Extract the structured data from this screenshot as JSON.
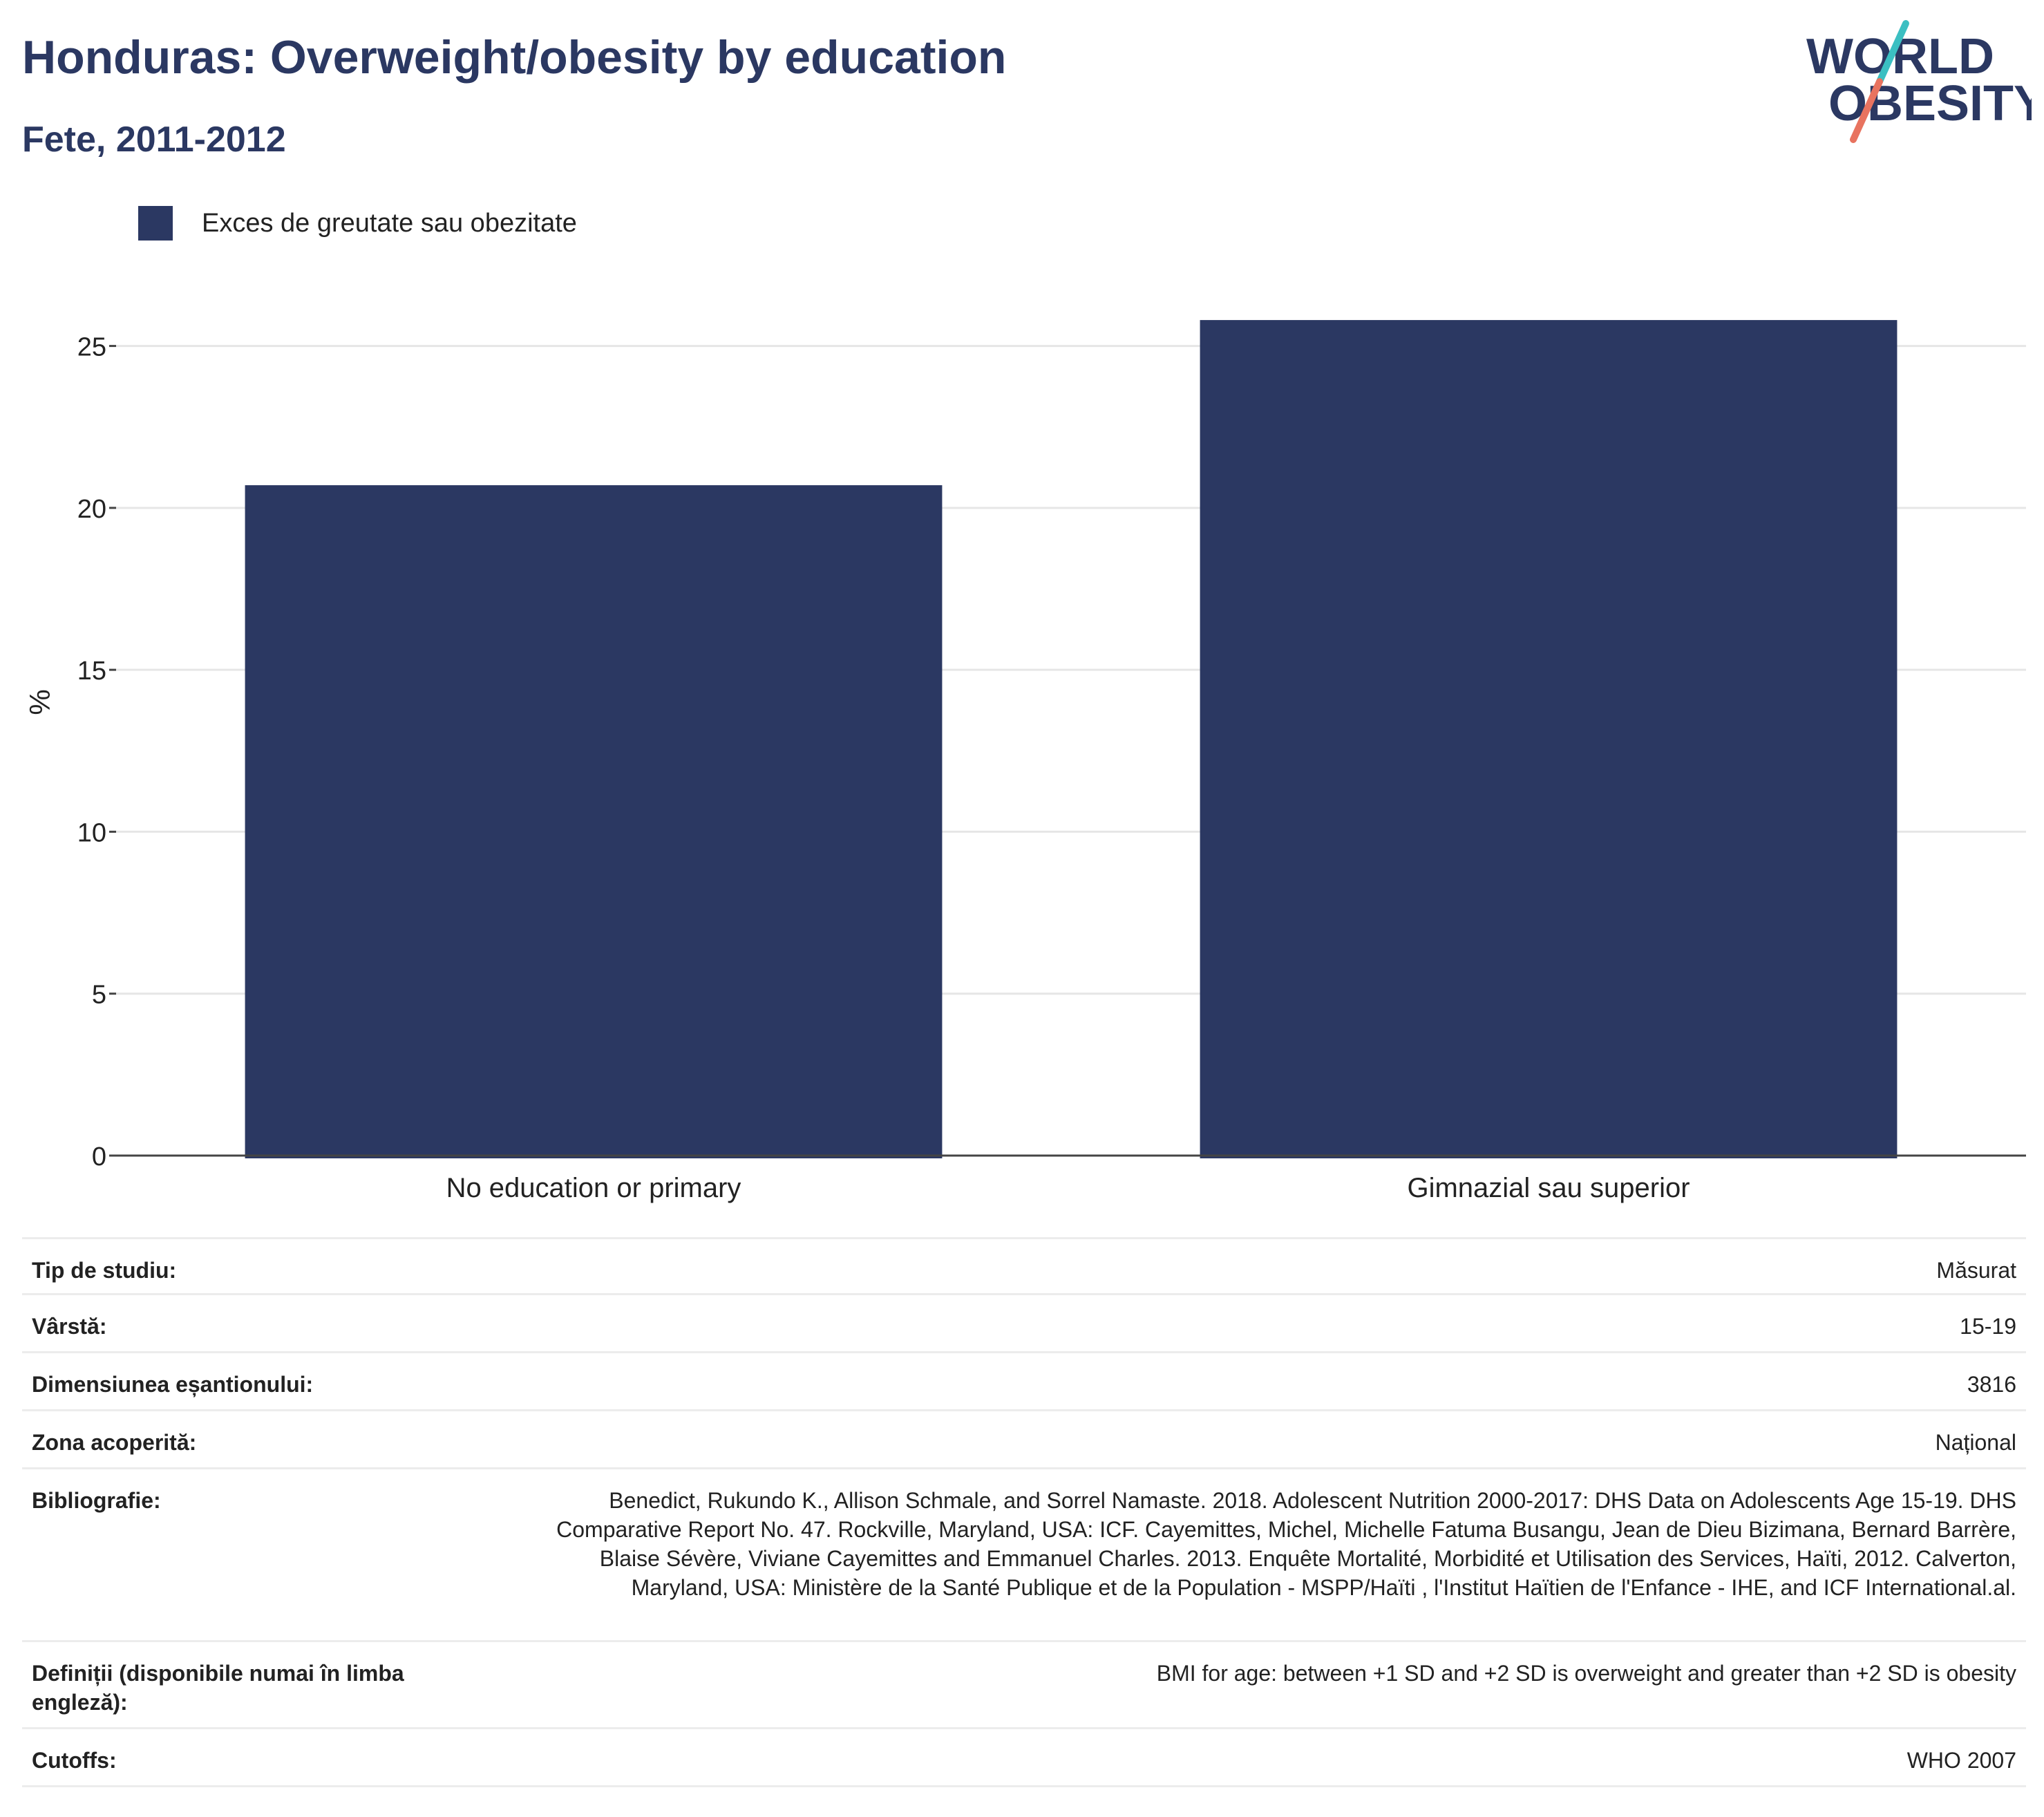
{
  "header": {
    "title": "Honduras: Overweight/obesity by education",
    "subtitle": "Fete, 2011-2012"
  },
  "logo": {
    "line1": "WORLD",
    "line2": "OBESITY",
    "colors": {
      "text": "#2b3862",
      "slash_top": "#3bbfc2",
      "slash_bottom": "#e8735f"
    }
  },
  "legend": {
    "label": "Exces de greutate sau obezitate",
    "color": "#2b3862"
  },
  "chart_data": {
    "type": "bar",
    "categories": [
      "No education or primary",
      "Gimnazial sau superior"
    ],
    "series": [
      {
        "name": "Exces de greutate sau obezitate",
        "values": [
          20.7,
          25.8
        ],
        "color": "#2b3862"
      }
    ],
    "ylabel": "%",
    "xlabel": "",
    "ylim": [
      0,
      28
    ],
    "yticks": [
      0,
      5,
      10,
      15,
      20,
      25
    ],
    "grid": true,
    "legend_position": "top-left"
  },
  "metadata": [
    {
      "key": "Tip de studiu:",
      "value": "Măsurat"
    },
    {
      "key": "Vârstă:",
      "value": "15-19"
    },
    {
      "key": "Dimensiunea eșantionului:",
      "value": "3816"
    },
    {
      "key": "Zona acoperită:",
      "value": "Național"
    },
    {
      "key": "Bibliografie:",
      "value": "Benedict, Rukundo K., Allison Schmale, and Sorrel Namaste. 2018. Adolescent Nutrition 2000-2017: DHS Data on Adolescents Age 15-19. DHS Comparative Report No. 47. Rockville, Maryland, USA: ICF. Cayemittes, Michel, Michelle Fatuma Busangu, Jean de Dieu Bizimana, Bernard Barrère, Blaise Sévère, Viviane Cayemittes and Emmanuel Charles. 2013. Enquête Mortalité, Morbidité et Utilisation des Services, Haïti, 2012. Calverton, Maryland, USA: Ministère de la Santé Publique et de la Population - MSPP/Haïti , l'Institut Haïtien de l'Enfance - IHE, and ICF International.al."
    },
    {
      "key": "Definiții (disponibile numai în limba engleză):",
      "value": "BMI for age: between +1 SD and +2 SD is overweight and greater than +2 SD is obesity"
    },
    {
      "key": "Cutoffs:",
      "value": "WHO 2007"
    }
  ]
}
